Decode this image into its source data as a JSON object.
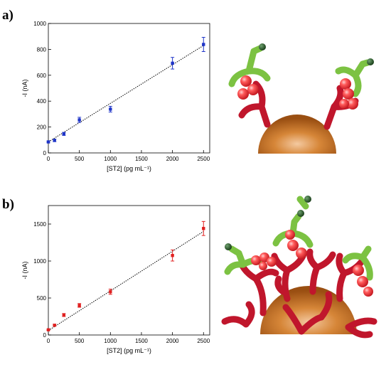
{
  "chart_data": [
    {
      "type": "scatter",
      "panel": "a)",
      "xlabel": "[ST2] (pg mL⁻¹)",
      "ylabel": "-I (nA)",
      "xlim": [
        0,
        2600
      ],
      "ylim": [
        0,
        1000
      ],
      "xticks": [
        "0",
        "500",
        "1000",
        "1500",
        "2000",
        "2500"
      ],
      "yticks": [
        "0",
        "200",
        "400",
        "600",
        "800",
        "1000"
      ],
      "marker_color": "#1f35c8",
      "fit_line": {
        "style": "dotted",
        "from": [
          0,
          85
        ],
        "to": [
          2500,
          830
        ]
      },
      "series": [
        {
          "x": [
            0,
            100,
            250,
            500,
            1000,
            2000,
            2500
          ],
          "y": [
            85,
            97,
            147,
            255,
            338,
            693,
            838
          ],
          "err": [
            6,
            10,
            12,
            20,
            22,
            45,
            55
          ]
        }
      ]
    },
    {
      "type": "scatter",
      "panel": "b)",
      "xlabel": "[ST2] (pg mL⁻¹)",
      "ylabel": "-I (nA)",
      "xlim": [
        0,
        2600
      ],
      "ylim": [
        0,
        1750
      ],
      "xticks": [
        "0",
        "500",
        "1000",
        "1500",
        "2000",
        "2500"
      ],
      "yticks": [
        "0",
        "500",
        "1000",
        "1500"
      ],
      "marker_color": "#e02020",
      "fit_line": {
        "style": "dotted",
        "from": [
          0,
          60
        ],
        "to": [
          2500,
          1400
        ]
      },
      "series": [
        {
          "x": [
            0,
            100,
            250,
            500,
            1000,
            2000,
            2500
          ],
          "y": [
            70,
            132,
            270,
            400,
            585,
            1075,
            1440
          ],
          "err": [
            6,
            12,
            20,
            25,
            35,
            75,
            95
          ]
        }
      ]
    }
  ],
  "colors": {
    "bead": "#b5651d",
    "capture_antibody": "#c0162c",
    "detection_antibody": "#7cc242",
    "antigen": "#e8303a",
    "label_tag": "#1e4d1e"
  },
  "illustration": {
    "a": "antibody-sandwich-on-bead",
    "b": "antibody-sandwich-on-bead-dense"
  }
}
